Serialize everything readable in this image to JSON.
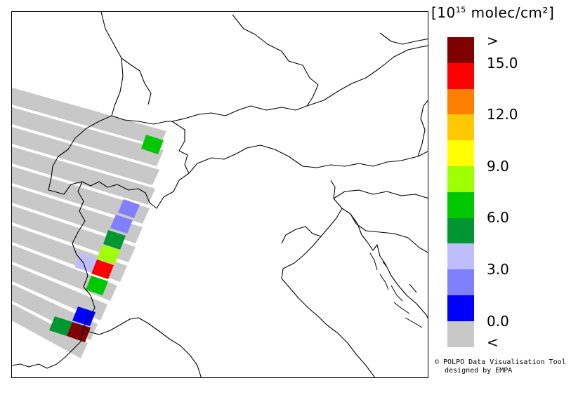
{
  "legend": {
    "title_open": "[10",
    "title_exp": "15",
    "title_unit": " molec/cm²",
    "title_close": "]",
    "colors": [
      "#7f0000",
      "#ff0000",
      "#ff8000",
      "#ffc800",
      "#ffff00",
      "#a0ff00",
      "#00c800",
      "#009632",
      "#bebeff",
      "#8080ff",
      "#0000ff",
      "#c8c8c8"
    ],
    "labels": [
      ">",
      "15.0",
      "12.0",
      "9.0",
      "6.0",
      "3.0",
      "0.0",
      "<"
    ]
  },
  "credit": {
    "line1": "© POLPO Data Visualisation Tool",
    "line2": "designed by EMPA"
  },
  "map": {
    "background": "#ffffff",
    "border_color": "#000000",
    "swath_color": "#c8c8c8"
  }
}
